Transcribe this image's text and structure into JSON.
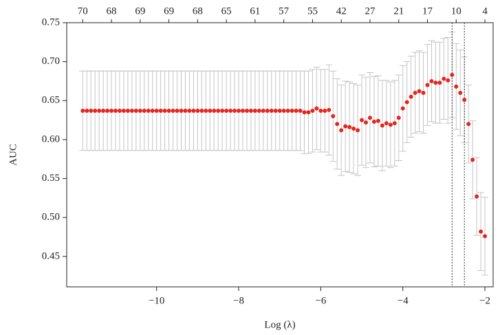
{
  "chart_data": {
    "type": "errorbar-scatter",
    "xlabel": "Log (λ)",
    "ylabel": "AUC",
    "xlim": [
      -12.19,
      -1.8
    ],
    "ylim": [
      0.411,
      0.75
    ],
    "xticks": [
      {
        "value": -10,
        "label": "−10"
      },
      {
        "value": -8,
        "label": "−8"
      },
      {
        "value": -6,
        "label": "−6"
      },
      {
        "value": -4,
        "label": "−4"
      },
      {
        "value": -2,
        "label": "−2"
      }
    ],
    "yticks": [
      0.45,
      {
        "value": 0.5,
        "label": "0.50"
      },
      0.55,
      {
        "value": 0.6,
        "label": "0.60"
      },
      0.65,
      {
        "value": 0.7,
        "label": "0.70"
      },
      0.75
    ],
    "x2ticks": [
      {
        "value": -11.8,
        "label": "70"
      },
      {
        "value": -11.1,
        "label": "68"
      },
      {
        "value": -10.4,
        "label": "69"
      },
      {
        "value": -9.7,
        "label": "69"
      },
      {
        "value": -9.0,
        "label": "68"
      },
      {
        "value": -8.3,
        "label": "65"
      },
      {
        "value": -7.6,
        "label": "61"
      },
      {
        "value": -6.9,
        "label": "57"
      },
      {
        "value": -6.2,
        "label": "55"
      },
      {
        "value": -5.5,
        "label": "42"
      },
      {
        "value": -4.8,
        "label": "27"
      },
      {
        "value": -4.1,
        "label": "21"
      },
      {
        "value": -3.4,
        "label": "17"
      },
      {
        "value": -2.7,
        "label": "10"
      },
      {
        "value": -2.0,
        "label": "4"
      }
    ],
    "vlines": [
      -2.8,
      -2.5
    ],
    "color": "#e3261f",
    "error_color": "#c4c4c4",
    "x": [
      -11.8,
      -11.7,
      -11.6,
      -11.5,
      -11.4,
      -11.3,
      -11.2,
      -11.1,
      -11.0,
      -10.9,
      -10.8,
      -10.7,
      -10.6,
      -10.5,
      -10.4,
      -10.3,
      -10.2,
      -10.1,
      -10.0,
      -9.9,
      -9.8,
      -9.7,
      -9.6,
      -9.5,
      -9.4,
      -9.3,
      -9.2,
      -9.1,
      -9.0,
      -8.9,
      -8.8,
      -8.7,
      -8.6,
      -8.5,
      -8.4,
      -8.3,
      -8.2,
      -8.1,
      -8.0,
      -7.9,
      -7.8,
      -7.7,
      -7.6,
      -7.5,
      -7.4,
      -7.3,
      -7.2,
      -7.1,
      -7.0,
      -6.9,
      -6.8,
      -6.7,
      -6.6,
      -6.5,
      -6.4,
      -6.3,
      -6.2,
      -6.1,
      -6.0,
      -5.9,
      -5.8,
      -5.7,
      -5.6,
      -5.5,
      -5.4,
      -5.3,
      -5.2,
      -5.1,
      -5.0,
      -4.9,
      -4.8,
      -4.7,
      -4.6,
      -4.5,
      -4.4,
      -4.3,
      -4.2,
      -4.1,
      -4.0,
      -3.9,
      -3.8,
      -3.7,
      -3.6,
      -3.5,
      -3.4,
      -3.3,
      -3.2,
      -3.1,
      -3.0,
      -2.9,
      -2.8,
      -2.7,
      -2.6,
      -2.5,
      -2.4,
      -2.3,
      -2.2,
      -2.1,
      -2.0
    ],
    "values": [
      0.637,
      0.637,
      0.637,
      0.637,
      0.637,
      0.637,
      0.637,
      0.637,
      0.637,
      0.637,
      0.637,
      0.637,
      0.637,
      0.637,
      0.637,
      0.637,
      0.637,
      0.637,
      0.637,
      0.637,
      0.637,
      0.637,
      0.637,
      0.637,
      0.637,
      0.637,
      0.637,
      0.637,
      0.637,
      0.637,
      0.637,
      0.637,
      0.637,
      0.637,
      0.637,
      0.637,
      0.637,
      0.637,
      0.637,
      0.637,
      0.637,
      0.637,
      0.637,
      0.637,
      0.637,
      0.637,
      0.637,
      0.637,
      0.637,
      0.637,
      0.637,
      0.637,
      0.637,
      0.637,
      0.635,
      0.635,
      0.637,
      0.64,
      0.637,
      0.637,
      0.638,
      0.63,
      0.62,
      0.612,
      0.617,
      0.616,
      0.614,
      0.612,
      0.625,
      0.622,
      0.628,
      0.623,
      0.624,
      0.618,
      0.621,
      0.619,
      0.621,
      0.628,
      0.64,
      0.648,
      0.655,
      0.66,
      0.662,
      0.66,
      0.67,
      0.675,
      0.673,
      0.673,
      0.678,
      0.676,
      0.683,
      0.668,
      0.66,
      0.651,
      0.62,
      0.574,
      0.527,
      0.482,
      0.476
    ],
    "errors": [
      0.051,
      0.051,
      0.051,
      0.051,
      0.051,
      0.051,
      0.051,
      0.051,
      0.051,
      0.051,
      0.051,
      0.051,
      0.051,
      0.051,
      0.051,
      0.051,
      0.051,
      0.051,
      0.051,
      0.051,
      0.051,
      0.051,
      0.051,
      0.051,
      0.051,
      0.051,
      0.051,
      0.051,
      0.051,
      0.051,
      0.051,
      0.051,
      0.051,
      0.051,
      0.051,
      0.051,
      0.051,
      0.051,
      0.051,
      0.051,
      0.051,
      0.051,
      0.051,
      0.051,
      0.051,
      0.051,
      0.051,
      0.051,
      0.051,
      0.051,
      0.051,
      0.051,
      0.051,
      0.051,
      0.053,
      0.053,
      0.053,
      0.053,
      0.053,
      0.053,
      0.058,
      0.058,
      0.058,
      0.058,
      0.058,
      0.058,
      0.058,
      0.058,
      0.058,
      0.058,
      0.058,
      0.058,
      0.058,
      0.058,
      0.055,
      0.055,
      0.055,
      0.055,
      0.055,
      0.052,
      0.052,
      0.052,
      0.052,
      0.052,
      0.052,
      0.052,
      0.052,
      0.052,
      0.052,
      0.055,
      0.055,
      0.055,
      0.055,
      0.055,
      0.05,
      0.05,
      0.05,
      0.05,
      0.05
    ]
  }
}
